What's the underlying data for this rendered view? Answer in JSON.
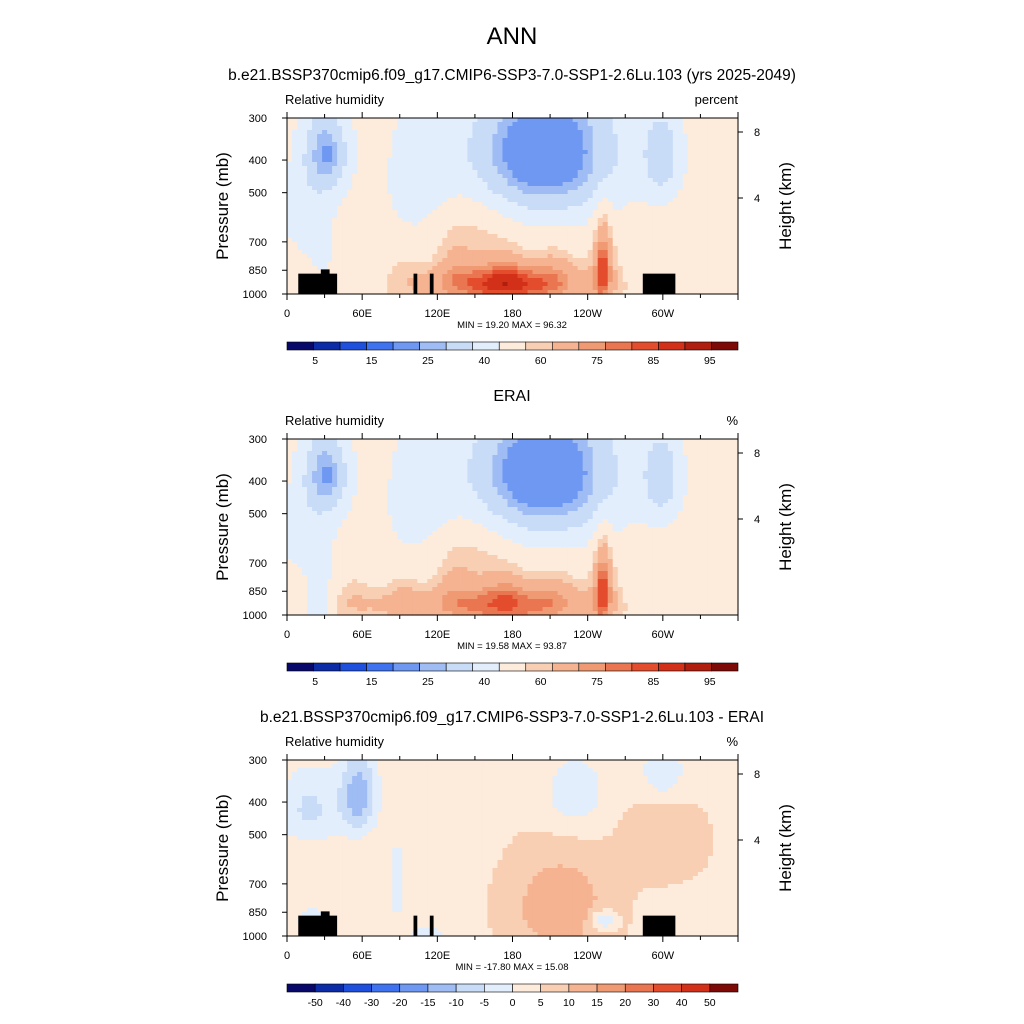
{
  "page": {
    "title": "ANN",
    "colors": {
      "blues": [
        "#08086a",
        "#0c2ba6",
        "#1f4fdd",
        "#3e72ee",
        "#6e98f1",
        "#9fbcf4",
        "#c8dcf8",
        "#e3eefc"
      ],
      "reds": [
        "#fdebdc",
        "#f9cfb4",
        "#f5b392",
        "#f09a74",
        "#ea7651",
        "#e34d2d",
        "#d33019",
        "#b01e0f",
        "#7d0a06"
      ],
      "land": "#000000"
    }
  },
  "chart_data": [
    {
      "type": "heatmap",
      "title": "b.e21.BSSP370cmip6.f09_g17.CMIP6-SSP3-7.0-SSP1-2.6Lu.103 (yrs 2025-2049)",
      "left_label": "Relative humidity",
      "right_label": "percent",
      "ylabel": "Pressure (mb)",
      "y2label": "Height (km)",
      "yticks": [
        "300",
        "400",
        "500",
        "700",
        "850",
        "1000"
      ],
      "y2ticks": [
        "8",
        "4"
      ],
      "xticks": [
        "0",
        "60E",
        "120E",
        "180",
        "120W",
        "60W"
      ],
      "stats": "MIN = 19.20  MAX = 96.32",
      "colorbar_labels": [
        "5",
        "15",
        "25",
        "40",
        "60",
        "75",
        "85",
        "95"
      ],
      "min": 19.2,
      "max": 96.32,
      "kind": "field"
    },
    {
      "type": "heatmap",
      "title": "ERAI",
      "left_label": "Relative humidity",
      "right_label": "%",
      "ylabel": "Pressure (mb)",
      "y2label": "Height (km)",
      "yticks": [
        "300",
        "400",
        "500",
        "700",
        "850",
        "1000"
      ],
      "y2ticks": [
        "8",
        "4"
      ],
      "xticks": [
        "0",
        "60E",
        "120E",
        "180",
        "120W",
        "60W"
      ],
      "stats": "MIN = 19.58  MAX = 93.87",
      "colorbar_labels": [
        "5",
        "15",
        "25",
        "40",
        "60",
        "75",
        "85",
        "95"
      ],
      "min": 19.58,
      "max": 93.87,
      "kind": "field"
    },
    {
      "type": "heatmap",
      "title": "b.e21.BSSP370cmip6.f09_g17.CMIP6-SSP3-7.0-SSP1-2.6Lu.103 - ERAI",
      "left_label": "Relative humidity",
      "right_label": "%",
      "ylabel": "Pressure (mb)",
      "y2label": "Height (km)",
      "yticks": [
        "300",
        "400",
        "500",
        "700",
        "850",
        "1000"
      ],
      "y2ticks": [
        "8",
        "4"
      ],
      "xticks": [
        "0",
        "60E",
        "120E",
        "180",
        "120W",
        "60W"
      ],
      "stats": "MIN = -17.80  MAX = 15.08",
      "colorbar_labels": [
        "-50",
        "-40",
        "-30",
        "-20",
        "-15",
        "-10",
        "-5",
        "0",
        "5",
        "10",
        "15",
        "20",
        "30",
        "40",
        "50"
      ],
      "min": -17.8,
      "max": 15.08,
      "kind": "diff"
    }
  ]
}
